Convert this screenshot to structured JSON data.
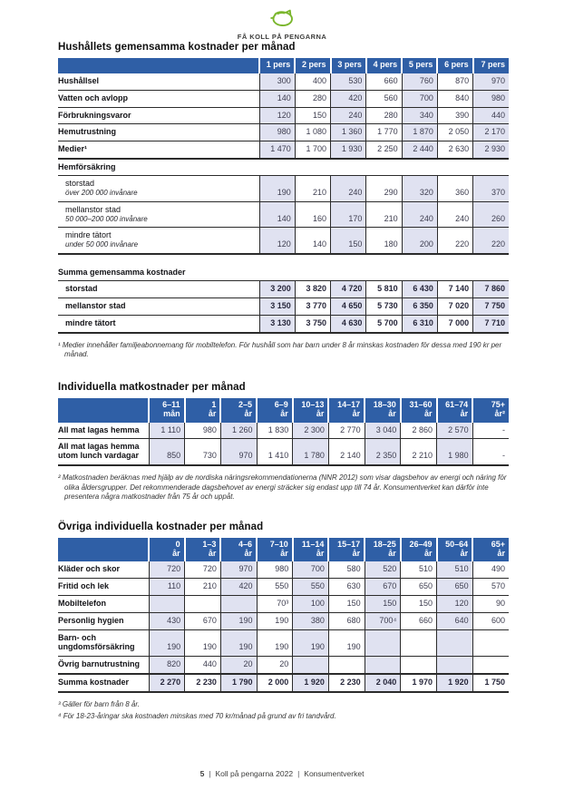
{
  "header": {
    "brand_text": "FÅ KOLL PÅ PENGARNA"
  },
  "colors": {
    "header_blue": "#2f5fa6",
    "column_shade": "#e0e2f1",
    "accent_green": "#7ab62c",
    "rule_line": "#2b2b2b",
    "value_text": "#3d3d4f"
  },
  "icons": {
    "brand_icon": "piggy-bank-icon"
  },
  "sections": {
    "household": {
      "title": "Hushållets gemensamma kostnader per månad",
      "footnote": "¹ Medier innehåller familjeabonnemang för mobiltelefon. För hushåll som har barn under 8 år minskas kostnaden för dessa med 190 kr per månad."
    },
    "food": {
      "title": "Individuella matkostnader per månad",
      "footnote": "² Matkostnaden beräknas med hjälp av de nordiska näringsrekommendationerna (NNR 2012) som visar dagsbehov av energi och näring för olika åldersgrupper. Det rekommenderade dagsbehovet av energi sträcker sig endast upp till 74 år. Konsumentverket kan därför inte presentera några matkostnader från 75 år och uppåt."
    },
    "other": {
      "title": "Övriga individuella kostnader per månad",
      "footnote3": "³ Gäller för barn från 8 år.",
      "footnote4": "⁴ För 18-23-åringar ska kostnaden minskas med 70 kr/månad på grund av fri tandvård."
    }
  },
  "tables": {
    "household": {
      "label_width": 222,
      "columns": [
        {
          "l1": "1 pers"
        },
        {
          "l1": "2 pers"
        },
        {
          "l1": "3 pers"
        },
        {
          "l1": "4 pers"
        },
        {
          "l1": "5 pers"
        },
        {
          "l1": "6 pers"
        },
        {
          "l1": "7 pers"
        }
      ],
      "rows": [
        {
          "label": "Hushållsel",
          "values": [
            "300",
            "400",
            "530",
            "660",
            "760",
            "870",
            "970"
          ]
        },
        {
          "label": "Vatten och avlopp",
          "values": [
            "140",
            "280",
            "420",
            "560",
            "700",
            "840",
            "980"
          ]
        },
        {
          "label": "Förbrukningsvaror",
          "values": [
            "120",
            "150",
            "240",
            "280",
            "340",
            "390",
            "440"
          ]
        },
        {
          "label": "Hemutrustning",
          "values": [
            "980",
            "1 080",
            "1 360",
            "1 770",
            "1 870",
            "2 050",
            "2 170"
          ]
        },
        {
          "label": "Medier¹",
          "values": [
            "1 470",
            "1 700",
            "1 930",
            "2 250",
            "2 440",
            "2 630",
            "2 930"
          ]
        },
        {
          "section": "Hemförsäkring",
          "border": "thick"
        },
        {
          "label": "storstad",
          "sublabel": "över 200 000 invånare",
          "plain": true,
          "indent": true,
          "values": [
            "190",
            "210",
            "240",
            "290",
            "320",
            "360",
            "370"
          ]
        },
        {
          "label": "mellanstor stad",
          "sublabel": "50 000–200 000 invånare",
          "plain": true,
          "indent": true,
          "values": [
            "140",
            "160",
            "170",
            "210",
            "240",
            "240",
            "260"
          ]
        },
        {
          "label": "mindre tätort",
          "sublabel": "under 50 000 invånare",
          "plain": true,
          "indent": true,
          "values": [
            "120",
            "140",
            "150",
            "180",
            "200",
            "220",
            "220"
          ]
        }
      ]
    },
    "household_sum": {
      "label_width": 222,
      "cols": 7,
      "rows": [
        {
          "section": "Summa gemensamma kostnader",
          "border": "none"
        },
        {
          "label": "storstad",
          "indent": true,
          "bold": true,
          "values": [
            "3 200",
            "3 820",
            "4 720",
            "5 810",
            "6 430",
            "7 140",
            "7 860"
          ]
        },
        {
          "label": "mellanstor stad",
          "indent": true,
          "bold": true,
          "values": [
            "3 150",
            "3 770",
            "4 650",
            "5 730",
            "6 350",
            "7 020",
            "7 750"
          ]
        },
        {
          "label": "mindre tätort",
          "indent": true,
          "bold": true,
          "values": [
            "3 130",
            "3 750",
            "4 630",
            "5 700",
            "6 310",
            "7 000",
            "7 710"
          ]
        }
      ]
    },
    "food": {
      "label_width": 100,
      "columns": [
        {
          "l1": "6–11",
          "l2": "mån"
        },
        {
          "l1": "1",
          "l2": "år"
        },
        {
          "l1": "2–5",
          "l2": "år"
        },
        {
          "l1": "6–9",
          "l2": "år"
        },
        {
          "l1": "10–13",
          "l2": "år"
        },
        {
          "l1": "14–17",
          "l2": "år"
        },
        {
          "l1": "18–30",
          "l2": "år"
        },
        {
          "l1": "31–60",
          "l2": "år"
        },
        {
          "l1": "61–74",
          "l2": "år"
        },
        {
          "l1": "75+",
          "l2": "år²"
        }
      ],
      "rows": [
        {
          "label": "All mat lagas hemma",
          "values": [
            "1 110",
            "980",
            "1 260",
            "1 830",
            "2 300",
            "2 770",
            "3 040",
            "2 860",
            "2 570",
            "-"
          ]
        },
        {
          "label": "All mat lagas hemma utom lunch vardagar",
          "values": [
            "850",
            "730",
            "970",
            "1 410",
            "1 780",
            "2 140",
            "2 350",
            "2 210",
            "1 980",
            "-"
          ]
        }
      ]
    },
    "other": {
      "label_width": 100,
      "columns": [
        {
          "l1": "0",
          "l2": "år"
        },
        {
          "l1": "1–3",
          "l2": "år"
        },
        {
          "l1": "4–6",
          "l2": "år"
        },
        {
          "l1": "7–10",
          "l2": "år"
        },
        {
          "l1": "11–14",
          "l2": "år"
        },
        {
          "l1": "15–17",
          "l2": "år"
        },
        {
          "l1": "18–25",
          "l2": "år"
        },
        {
          "l1": "26–49",
          "l2": "år"
        },
        {
          "l1": "50–64",
          "l2": "år"
        },
        {
          "l1": "65+",
          "l2": "år"
        }
      ],
      "rows": [
        {
          "label": "Kläder och skor",
          "values": [
            "720",
            "720",
            "970",
            "980",
            "700",
            "580",
            "520",
            "510",
            "510",
            "490"
          ]
        },
        {
          "label": "Fritid och lek",
          "values": [
            "110",
            "210",
            "420",
            "550",
            "550",
            "630",
            "670",
            "650",
            "650",
            "570"
          ]
        },
        {
          "label": "Mobiltelefon",
          "values": [
            "",
            "",
            "",
            "70³",
            "100",
            "150",
            "150",
            "150",
            "120",
            "90"
          ]
        },
        {
          "label": "Personlig hygien",
          "values": [
            "430",
            "670",
            "190",
            "190",
            "380",
            "680",
            "700⁴",
            "660",
            "640",
            "600"
          ]
        },
        {
          "label": "Barn- och ungdomsförsäkring",
          "values": [
            "190",
            "190",
            "190",
            "190",
            "190",
            "190",
            "",
            "",
            "",
            ""
          ]
        },
        {
          "label": "Övrig barnutrustning",
          "values": [
            "820",
            "440",
            "20",
            "20",
            "",
            "",
            "",
            "",
            "",
            ""
          ]
        },
        {
          "label": "Summa kostnader",
          "bold": true,
          "thick_top": true,
          "values": [
            "2 270",
            "2 230",
            "1 790",
            "2 000",
            "1 920",
            "2 230",
            "2 040",
            "1 970",
            "1 920",
            "1 750"
          ]
        }
      ]
    }
  },
  "footer": {
    "page_number": "5",
    "doc_title": "Koll på pengarna 2022",
    "publisher": "Konsumentverket"
  }
}
